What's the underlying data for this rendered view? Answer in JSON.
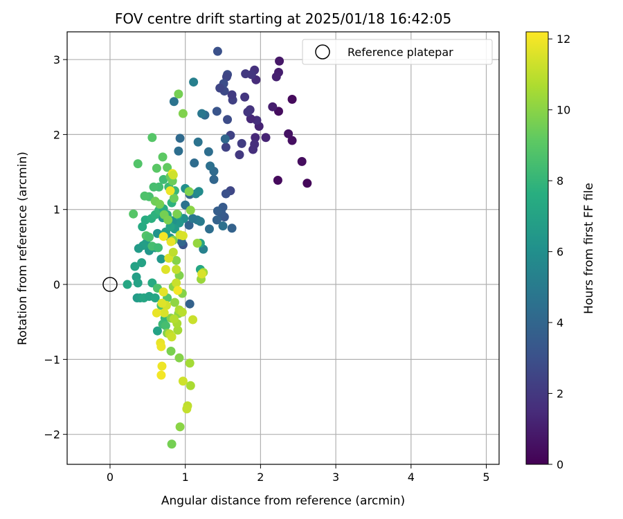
{
  "chart_data": {
    "type": "scatter",
    "title": "FOV centre drift starting at 2025/01/18 16:42:05",
    "xlabel": "Angular distance from reference (arcmin)",
    "ylabel": "Rotation from reference (arcmin)",
    "xlim": [
      -0.57,
      5.17
    ],
    "ylim": [
      -2.4,
      3.37
    ],
    "xticks": [
      0,
      1,
      2,
      3,
      4,
      5
    ],
    "yticks": [
      -2,
      -1,
      0,
      1,
      2,
      3
    ],
    "grid": true,
    "legend": {
      "placement": "top-right",
      "entries": [
        "Reference platepar"
      ]
    },
    "reference_point": {
      "x": 0,
      "y": 0,
      "marker": "open-circle"
    },
    "colorbar": {
      "label": "Hours from first FF file",
      "range": [
        0,
        12.2
      ],
      "ticks": [
        0,
        2,
        4,
        6,
        8,
        10,
        12
      ],
      "colormap": "viridis"
    },
    "points": [
      [
        2.62,
        1.35,
        0.2
      ],
      [
        2.55,
        1.64,
        0.4
      ],
      [
        2.42,
        2.47,
        0.3
      ],
      [
        2.42,
        1.92,
        0.5
      ],
      [
        2.37,
        2.01,
        0.6
      ],
      [
        2.25,
        2.98,
        0.8
      ],
      [
        2.24,
        2.83,
        1.0
      ],
      [
        2.24,
        2.31,
        0.4
      ],
      [
        2.23,
        1.39,
        0.3
      ],
      [
        2.21,
        2.77,
        1.1
      ],
      [
        2.16,
        2.37,
        1.0
      ],
      [
        2.07,
        1.96,
        1.2
      ],
      [
        1.98,
        2.11,
        1.2
      ],
      [
        1.95,
        2.19,
        1.6
      ],
      [
        1.94,
        2.73,
        1.5
      ],
      [
        1.93,
        1.96,
        1.4
      ],
      [
        1.92,
        1.87,
        1.6
      ],
      [
        1.92,
        2.86,
        1.7
      ],
      [
        1.9,
        1.8,
        1.6
      ],
      [
        1.88,
        2.8,
        1.9
      ],
      [
        1.87,
        2.21,
        1.4
      ],
      [
        1.86,
        2.33,
        1.8
      ],
      [
        1.83,
        2.3,
        1.9
      ],
      [
        1.8,
        2.81,
        2.0
      ],
      [
        1.79,
        2.5,
        1.9
      ],
      [
        1.75,
        1.88,
        2.2
      ],
      [
        1.72,
        1.73,
        2.0
      ],
      [
        1.63,
        2.46,
        2.3
      ],
      [
        1.62,
        2.53,
        2.1
      ],
      [
        1.6,
        1.99,
        2.4
      ],
      [
        1.6,
        1.25,
        2.6
      ],
      [
        1.56,
        2.2,
        2.8
      ],
      [
        1.56,
        2.8,
        2.8
      ],
      [
        1.55,
        2.77,
        2.5
      ],
      [
        1.54,
        1.83,
        2.4
      ],
      [
        1.52,
        2.58,
        2.7
      ],
      [
        1.51,
        2.68,
        2.9
      ],
      [
        1.46,
        2.62,
        2.5
      ],
      [
        1.43,
        3.11,
        3.0
      ],
      [
        1.42,
        2.31,
        3.2
      ],
      [
        1.54,
        1.21,
        3.0
      ],
      [
        1.53,
        1.94,
        4.1
      ],
      [
        1.52,
        0.9,
        3.3
      ],
      [
        1.5,
        1.03,
        3.5
      ],
      [
        1.48,
        0.95,
        3.5
      ],
      [
        1.43,
        0.98,
        3.6
      ],
      [
        1.38,
        1.4,
        4.0
      ],
      [
        1.38,
        1.51,
        4.2
      ],
      [
        1.33,
        1.58,
        4.5
      ],
      [
        1.31,
        1.77,
        4.4
      ],
      [
        1.26,
        2.26,
        4.2
      ],
      [
        1.22,
        2.28,
        4.8
      ],
      [
        1.17,
        1.9,
        4.6
      ],
      [
        1.12,
        1.62,
        4.3
      ],
      [
        1.11,
        2.7,
        5.2
      ],
      [
        1.2,
        0.84,
        5.0
      ],
      [
        1.24,
        0.47,
        5.3
      ],
      [
        1.16,
        0.86,
        5.0
      ],
      [
        1.06,
        1.2,
        4.1
      ],
      [
        1.05,
        0.79,
        3.9
      ],
      [
        0.98,
        0.88,
        3.6
      ],
      [
        0.97,
        0.53,
        3.2
      ],
      [
        0.95,
        0.57,
        4.1
      ],
      [
        0.93,
        1.95,
        4.2
      ],
      [
        0.91,
        1.78,
        4.4
      ],
      [
        1.0,
        1.06,
        4.6
      ],
      [
        1.06,
        -0.26,
        3.8
      ],
      [
        0.85,
        2.44,
        4.6
      ],
      [
        1.32,
        0.74,
        4.4
      ],
      [
        1.42,
        0.86,
        3.8
      ],
      [
        1.62,
        0.75,
        3.8
      ],
      [
        1.5,
        0.78,
        4.5
      ],
      [
        1.1,
        0.88,
        4.8
      ],
      [
        1.14,
        1.21,
        5.5
      ],
      [
        1.18,
        1.24,
        5.8
      ],
      [
        1.0,
        1.28,
        6.0
      ],
      [
        0.98,
        0.88,
        6.0
      ],
      [
        0.92,
        0.82,
        6.4
      ],
      [
        0.86,
        0.74,
        6.6
      ],
      [
        0.83,
        0.85,
        6.2
      ],
      [
        0.8,
        0.62,
        6.0
      ],
      [
        0.74,
        0.7,
        6.8
      ],
      [
        0.7,
        0.89,
        6.4
      ],
      [
        0.68,
        0.34,
        6.4
      ],
      [
        0.63,
        0.68,
        6.2
      ],
      [
        0.6,
        0.49,
        6.6
      ],
      [
        0.52,
        0.45,
        6.4
      ],
      [
        0.48,
        0.55,
        6.5
      ],
      [
        0.44,
        0.52,
        6.8
      ],
      [
        0.42,
        0.29,
        7.0
      ],
      [
        0.38,
        0.48,
        6.6
      ],
      [
        0.35,
        0.1,
        6.8
      ],
      [
        0.33,
        0.24,
        7.0
      ],
      [
        0.36,
        -0.18,
        6.6
      ],
      [
        0.4,
        -0.18,
        6.8
      ],
      [
        0.45,
        -0.18,
        7.2
      ],
      [
        0.52,
        -0.16,
        7.0
      ],
      [
        0.6,
        -0.18,
        7.2
      ],
      [
        0.23,
        0.0,
        7.2
      ],
      [
        0.37,
        0.02,
        7.0
      ],
      [
        0.56,
        0.02,
        7.4
      ],
      [
        0.63,
        -0.62,
        7.0
      ],
      [
        1.2,
        0.55,
        7.0
      ],
      [
        1.2,
        0.2,
        7.2
      ],
      [
        0.43,
        0.77,
        7.4
      ],
      [
        0.47,
        0.86,
        7.5
      ],
      [
        0.55,
        0.88,
        7.7
      ],
      [
        0.6,
        0.93,
        7.8
      ],
      [
        0.65,
        0.99,
        8.0
      ],
      [
        0.71,
        1.01,
        7.4
      ],
      [
        0.76,
        0.93,
        7.3
      ],
      [
        0.8,
        0.77,
        7.1
      ],
      [
        0.82,
        1.09,
        7.8
      ],
      [
        0.9,
        0.93,
        7.6
      ],
      [
        0.86,
        1.25,
        8.1
      ],
      [
        0.78,
        1.3,
        8.2
      ],
      [
        0.71,
        1.4,
        8.3
      ],
      [
        0.65,
        1.3,
        8.4
      ],
      [
        0.58,
        1.3,
        8.5
      ],
      [
        0.52,
        1.17,
        8.6
      ],
      [
        0.46,
        1.18,
        8.7
      ],
      [
        0.48,
        0.65,
        8.8
      ],
      [
        0.52,
        0.63,
        8.6
      ],
      [
        0.56,
        0.51,
        8.5
      ],
      [
        0.64,
        0.49,
        8.3
      ],
      [
        0.73,
        -0.45,
        8.0
      ],
      [
        0.7,
        -0.53,
        8.2
      ],
      [
        0.74,
        -0.55,
        8.5
      ],
      [
        0.68,
        -0.28,
        8.7
      ],
      [
        0.76,
        -0.18,
        8.9
      ],
      [
        0.63,
        -0.05,
        8.7
      ],
      [
        0.31,
        0.94,
        8.9
      ],
      [
        0.37,
        1.61,
        8.8
      ],
      [
        0.56,
        1.96,
        8.9
      ],
      [
        0.62,
        1.55,
        9.0
      ],
      [
        0.7,
        1.7,
        9.1
      ],
      [
        0.76,
        1.56,
        9.2
      ],
      [
        0.8,
        1.44,
        9.3
      ],
      [
        0.83,
        1.38,
        9.4
      ],
      [
        0.85,
        1.15,
        9.4
      ],
      [
        0.6,
        1.11,
        9.5
      ],
      [
        0.66,
        1.07,
        9.6
      ],
      [
        0.72,
        0.93,
        9.6
      ],
      [
        0.77,
        0.86,
        9.7
      ],
      [
        0.89,
        0.94,
        9.7
      ],
      [
        0.84,
        0.59,
        9.8
      ],
      [
        0.88,
        0.32,
        9.9
      ],
      [
        0.92,
        0.12,
        9.8
      ],
      [
        0.96,
        -0.12,
        9.9
      ],
      [
        0.84,
        -0.03,
        10.0
      ],
      [
        0.86,
        -0.24,
        10.1
      ],
      [
        0.91,
        -0.39,
        10.0
      ],
      [
        0.81,
        -0.45,
        9.9
      ],
      [
        0.76,
        -0.65,
        9.8
      ],
      [
        0.81,
        -0.89,
        9.7
      ],
      [
        0.92,
        -0.98,
        9.9
      ],
      [
        0.93,
        -1.9,
        10.0
      ],
      [
        0.82,
        -2.13,
        9.6
      ],
      [
        0.91,
        2.54,
        9.6
      ],
      [
        0.97,
        2.28,
        9.8
      ],
      [
        1.05,
        1.24,
        9.8
      ],
      [
        1.07,
        0.99,
        10.0
      ],
      [
        1.16,
        0.55,
        10.2
      ],
      [
        1.21,
        0.07,
        10.3
      ],
      [
        1.24,
        0.16,
        10.4
      ],
      [
        1.1,
        -0.47,
        11.2
      ],
      [
        1.06,
        -1.05,
        10.5
      ],
      [
        1.07,
        -1.35,
        10.6
      ],
      [
        1.03,
        -1.62,
        11.0
      ],
      [
        1.02,
        -1.66,
        11.1
      ],
      [
        0.97,
        -1.29,
        11.3
      ],
      [
        0.9,
        -0.61,
        10.5
      ],
      [
        0.89,
        -0.52,
        10.6
      ],
      [
        0.85,
        -0.46,
        10.8
      ],
      [
        0.79,
        -0.66,
        11.0
      ],
      [
        0.82,
        -0.7,
        11.2
      ],
      [
        0.75,
        -0.28,
        11.4
      ],
      [
        0.72,
        -0.38,
        11.5
      ],
      [
        0.69,
        -0.25,
        11.6
      ],
      [
        0.71,
        -0.1,
        11.7
      ],
      [
        0.67,
        -0.78,
        11.8
      ],
      [
        0.68,
        -0.83,
        11.9
      ],
      [
        0.69,
        -1.09,
        11.9
      ],
      [
        0.68,
        -1.21,
        12.0
      ],
      [
        0.62,
        -0.38,
        11.8
      ],
      [
        0.74,
        0.2,
        11.6
      ],
      [
        0.78,
        0.35,
        11.5
      ],
      [
        0.81,
        0.57,
        11.8
      ],
      [
        0.84,
        0.43,
        11.0
      ],
      [
        0.88,
        0.02,
        11.2
      ],
      [
        0.9,
        -0.08,
        12.0
      ],
      [
        0.88,
        0.2,
        11.1
      ],
      [
        0.93,
        0.66,
        11.3
      ],
      [
        0.97,
        0.65,
        11.5
      ],
      [
        0.71,
        0.64,
        12.0
      ],
      [
        0.8,
        1.25,
        11.9
      ],
      [
        0.83,
        1.48,
        11.9
      ],
      [
        0.84,
        1.46,
        11.3
      ],
      [
        1.22,
        0.14,
        11.5
      ],
      [
        0.92,
        -0.34,
        10.7
      ],
      [
        0.96,
        -0.37,
        10.9
      ]
    ]
  }
}
